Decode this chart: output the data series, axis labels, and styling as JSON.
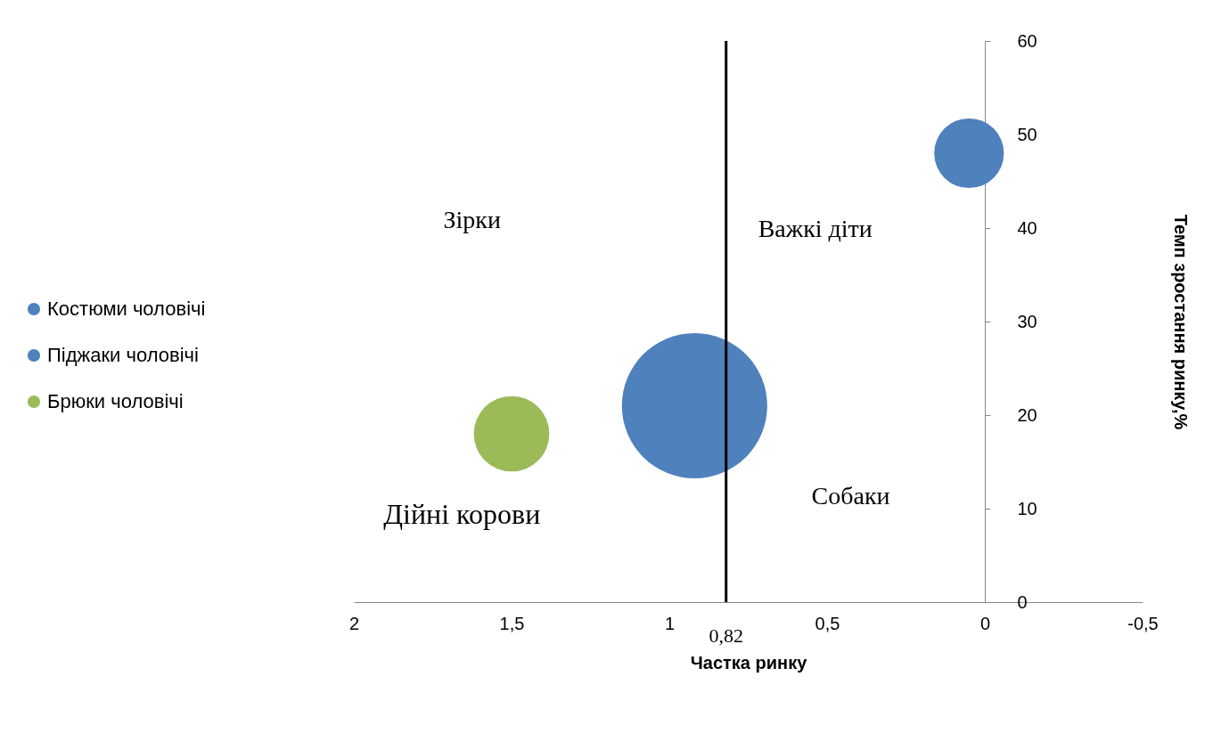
{
  "chart_data": {
    "type": "bubble",
    "xlabel": "Частка ринку",
    "ylabel": "Темп зростання ринку,%",
    "xlim": [
      2,
      -0.5
    ],
    "xticks": [
      2,
      {
        "value": 1.5,
        "label": "1,5"
      },
      1,
      {
        "value": 0.5,
        "label": "0,5"
      },
      0,
      {
        "value": -0.5,
        "label": "-0,5"
      }
    ],
    "ylim": [
      0,
      60
    ],
    "yticks": [
      0,
      10,
      20,
      30,
      40,
      50,
      60
    ],
    "series": [
      {
        "name": "Костюми чоловічі",
        "color": "#4f81bd",
        "x": [
          0.05
        ],
        "values": [
          48
        ],
        "sizes": [
          0.23
        ]
      },
      {
        "name": "Піджаки чоловічі",
        "color": "#4f81bd",
        "x": [
          0.92
        ],
        "values": [
          21
        ],
        "sizes": [
          1
        ]
      },
      {
        "name": "Брюки чоловічі",
        "color": "#9bbb59",
        "x": [
          1.5
        ],
        "values": [
          18
        ],
        "sizes": [
          0.27
        ]
      }
    ],
    "ref_lines": [
      {
        "axis": "x",
        "value": 0.82,
        "label": "0,82",
        "color": "#000000"
      }
    ],
    "annotations": [
      "Зірки",
      "Важкі діти",
      "Дійні корови",
      "Собаки"
    ],
    "legend": "left",
    "grid": false
  }
}
